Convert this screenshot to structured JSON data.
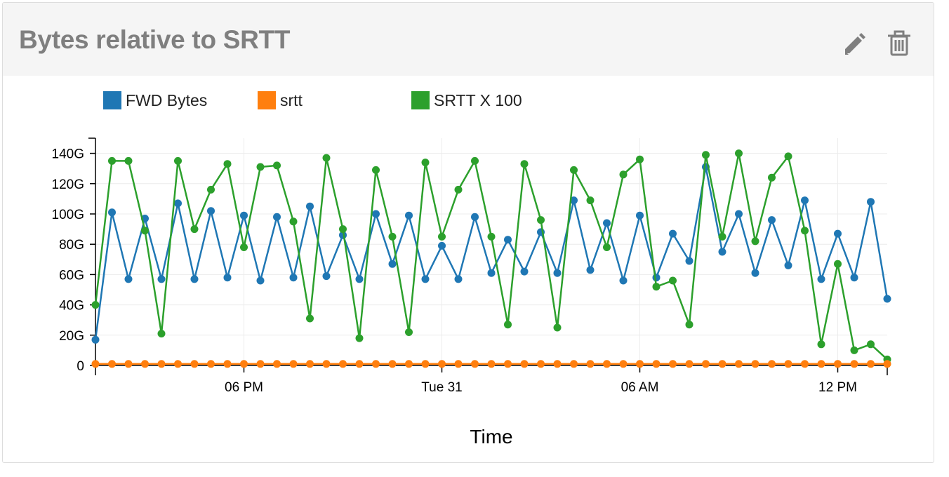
{
  "panel": {
    "title": "Bytes relative to SRTT",
    "edit_icon": "pencil-icon",
    "delete_icon": "trash-icon"
  },
  "chart_data": {
    "type": "line",
    "title": "",
    "xlabel": "Time",
    "ylabel": "",
    "ylim": [
      0,
      150
    ],
    "y_unit": "G",
    "yticks": [
      0,
      20,
      40,
      60,
      80,
      100,
      120,
      140
    ],
    "ytick_labels": [
      "0",
      "20G",
      "40G",
      "60G",
      "80G",
      "100G",
      "120G",
      "140G"
    ],
    "xlim": [
      0,
      48
    ],
    "xtick_positions": [
      9,
      21,
      33,
      45
    ],
    "xtick_labels": [
      "06 PM",
      "Tue 31",
      "06 AM",
      "12 PM"
    ],
    "x_unit": "hours since first sample",
    "x": [
      0,
      1,
      2,
      3,
      4,
      5,
      6,
      7,
      8,
      9,
      10,
      11,
      12,
      13,
      14,
      15,
      16,
      17,
      18,
      19,
      20,
      21,
      22,
      23,
      24,
      25,
      26,
      27,
      28,
      29,
      30,
      31,
      32,
      33,
      34,
      35,
      36,
      37,
      38,
      39,
      40,
      41,
      42,
      43,
      44,
      45,
      46,
      47,
      48
    ],
    "legend_position": "top-left",
    "grid": true,
    "series": [
      {
        "name": "FWD Bytes",
        "color": "#1f77b4",
        "values": [
          17,
          101,
          57,
          97,
          57,
          107,
          57,
          102,
          58,
          99,
          56,
          98,
          58,
          105,
          59,
          86,
          57,
          100,
          67,
          99,
          57,
          79,
          57,
          98,
          61,
          83,
          62,
          88,
          61,
          109,
          63,
          94,
          56,
          99,
          58,
          87,
          69,
          131,
          75,
          100,
          61,
          96,
          66,
          109,
          57,
          87,
          58,
          108,
          44
        ]
      },
      {
        "name": "srtt",
        "color": "#ff7f0e",
        "values": [
          1,
          1,
          1,
          1,
          1,
          1,
          1,
          1,
          1,
          1,
          1,
          1,
          1,
          1,
          1,
          1,
          1,
          1,
          1,
          1,
          1,
          1,
          1,
          1,
          1,
          1,
          1,
          1,
          1,
          1,
          1,
          1,
          1,
          1,
          1,
          1,
          1,
          1,
          1,
          1,
          1,
          1,
          1,
          1,
          1,
          1,
          1,
          1,
          1
        ]
      },
      {
        "name": "SRTT X 100",
        "color": "#2ca02c",
        "values": [
          40,
          135,
          135,
          89,
          21,
          135,
          90,
          116,
          133,
          78,
          131,
          132,
          95,
          31,
          137,
          90,
          18,
          129,
          85,
          22,
          134,
          85,
          116,
          135,
          85,
          27,
          133,
          96,
          25,
          129,
          109,
          78,
          126,
          136,
          52,
          56,
          27,
          139,
          85,
          140,
          82,
          124,
          138,
          89,
          14,
          67,
          10,
          14,
          4
        ]
      }
    ]
  }
}
